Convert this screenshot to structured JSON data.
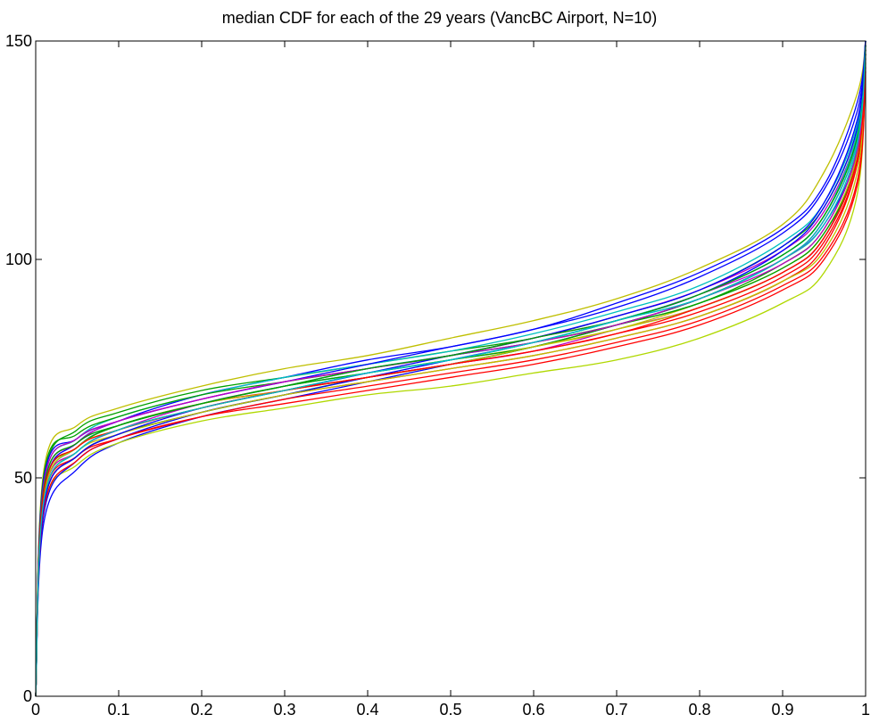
{
  "chart_data": {
    "type": "line",
    "title": "median CDF for each of the 29 years (VancBC Airport, N=10)",
    "xlabel": "",
    "ylabel": "",
    "xlim": [
      0,
      1
    ],
    "ylim": [
      0,
      150
    ],
    "x_ticks": [
      0,
      0.1,
      0.2,
      0.3,
      0.4,
      0.5,
      0.6,
      0.7,
      0.8,
      0.9,
      1
    ],
    "x_tick_labels": [
      "0",
      "0.1",
      "0.2",
      "0.3",
      "0.4",
      "0.5",
      "0.6",
      "0.7",
      "0.8",
      "0.9",
      "1"
    ],
    "y_ticks": [
      0,
      50,
      100,
      150
    ],
    "y_tick_labels": [
      "0",
      "50",
      "100",
      "150"
    ],
    "grid": false,
    "legend": "none",
    "x": [
      0,
      0.01,
      0.05,
      0.1,
      0.2,
      0.3,
      0.4,
      0.5,
      0.6,
      0.7,
      0.8,
      0.9,
      0.95,
      0.99,
      1
    ],
    "series": [
      {
        "color": "#0000ff",
        "values": [
          0,
          40,
          52,
          58,
          64,
          68,
          72,
          76,
          80,
          85,
          91,
          100,
          108,
          125,
          150
        ]
      },
      {
        "color": "#00a000",
        "values": [
          0,
          50,
          61,
          65,
          70,
          73,
          76,
          79,
          82,
          87,
          93,
          103,
          112,
          130,
          150
        ]
      },
      {
        "color": "#ff0000",
        "values": [
          0,
          45,
          55,
          60,
          65,
          69,
          72,
          75,
          78,
          82,
          87,
          95,
          103,
          122,
          148
        ]
      },
      {
        "color": "#00bfbf",
        "values": [
          0,
          48,
          58,
          62,
          67,
          71,
          74,
          77,
          81,
          86,
          92,
          101,
          110,
          128,
          149
        ]
      },
      {
        "color": "#bf00bf",
        "values": [
          0,
          46,
          56,
          61,
          66,
          70,
          73,
          76,
          79,
          84,
          89,
          97,
          105,
          124,
          147
        ]
      },
      {
        "color": "#bfbf00",
        "values": [
          0,
          52,
          62,
          66,
          71,
          75,
          78,
          82,
          86,
          91,
          98,
          108,
          120,
          138,
          150
        ]
      },
      {
        "color": "#b0d800",
        "values": [
          0,
          43,
          53,
          58,
          63,
          66,
          69,
          71,
          74,
          77,
          82,
          90,
          97,
          115,
          145
        ]
      },
      {
        "color": "#0000ff",
        "values": [
          0,
          47,
          58,
          63,
          69,
          73,
          77,
          80,
          84,
          89,
          96,
          106,
          116,
          134,
          150
        ]
      },
      {
        "color": "#00a000",
        "values": [
          0,
          44,
          55,
          60,
          65,
          69,
          73,
          76,
          80,
          85,
          91,
          100,
          109,
          127,
          149
        ]
      },
      {
        "color": "#ff0000",
        "values": [
          0,
          46,
          57,
          62,
          67,
          70,
          73,
          76,
          79,
          83,
          88,
          96,
          104,
          122,
          146
        ]
      },
      {
        "color": "#00bfbf",
        "values": [
          0,
          49,
          59,
          64,
          69,
          73,
          76,
          79,
          83,
          88,
          94,
          104,
          113,
          131,
          150
        ]
      },
      {
        "color": "#bf00bf",
        "values": [
          0,
          45,
          56,
          61,
          67,
          71,
          75,
          78,
          82,
          87,
          93,
          102,
          111,
          129,
          150
        ]
      },
      {
        "color": "#bfbf00",
        "values": [
          0,
          47,
          57,
          62,
          67,
          70,
          74,
          77,
          80,
          84,
          90,
          98,
          106,
          124,
          148
        ]
      },
      {
        "color": "#0000ff",
        "values": [
          0,
          42,
          54,
          59,
          65,
          69,
          73,
          77,
          81,
          86,
          92,
          102,
          112,
          130,
          150
        ]
      },
      {
        "color": "#00a000",
        "values": [
          0,
          51,
          60,
          64,
          69,
          72,
          75,
          78,
          81,
          85,
          90,
          98,
          106,
          123,
          147
        ]
      },
      {
        "color": "#ff0000",
        "values": [
          0,
          44,
          55,
          59,
          64,
          68,
          71,
          74,
          77,
          81,
          86,
          94,
          101,
          118,
          144
        ]
      },
      {
        "color": "#00bfbf",
        "values": [
          0,
          46,
          57,
          62,
          67,
          71,
          75,
          78,
          81,
          86,
          91,
          100,
          108,
          126,
          149
        ]
      },
      {
        "color": "#bf00bf",
        "values": [
          0,
          48,
          58,
          63,
          68,
          72,
          75,
          78,
          82,
          86,
          92,
          100,
          109,
          127,
          149
        ]
      },
      {
        "color": "#bfbf00",
        "values": [
          0,
          45,
          56,
          60,
          65,
          69,
          72,
          75,
          78,
          82,
          87,
          95,
          102,
          120,
          146
        ]
      },
      {
        "color": "#0000ff",
        "values": [
          0,
          50,
          59,
          63,
          68,
          72,
          76,
          80,
          84,
          90,
          97,
          107,
          117,
          136,
          150
        ]
      },
      {
        "color": "#00a000",
        "values": [
          0,
          47,
          57,
          62,
          67,
          71,
          74,
          77,
          80,
          85,
          90,
          99,
          107,
          125,
          148
        ]
      },
      {
        "color": "#ff0000",
        "values": [
          0,
          43,
          54,
          59,
          64,
          67,
          70,
          73,
          76,
          80,
          85,
          93,
          100,
          117,
          143
        ]
      },
      {
        "color": "#00bfbf",
        "values": [
          0,
          45,
          56,
          61,
          66,
          70,
          74,
          77,
          81,
          86,
          92,
          101,
          110,
          129,
          150
        ]
      },
      {
        "color": "#bf00bf",
        "values": [
          0,
          49,
          59,
          63,
          68,
          72,
          75,
          78,
          81,
          85,
          91,
          99,
          107,
          125,
          148
        ]
      },
      {
        "color": "#bfbf00",
        "values": [
          0,
          46,
          57,
          61,
          66,
          70,
          73,
          76,
          80,
          84,
          89,
          97,
          105,
          123,
          147
        ]
      },
      {
        "color": "#0000ff",
        "values": [
          0,
          44,
          55,
          60,
          66,
          70,
          74,
          78,
          82,
          87,
          93,
          103,
          113,
          132,
          150
        ]
      },
      {
        "color": "#00a000",
        "values": [
          0,
          48,
          58,
          62,
          67,
          71,
          75,
          78,
          82,
          86,
          92,
          101,
          110,
          128,
          149
        ]
      },
      {
        "color": "#ff0000",
        "values": [
          0,
          47,
          57,
          61,
          66,
          70,
          73,
          76,
          79,
          83,
          89,
          97,
          105,
          123,
          147
        ]
      },
      {
        "color": "#00bfbf",
        "values": [
          0,
          45,
          56,
          61,
          66,
          70,
          74,
          77,
          81,
          86,
          91,
          100,
          109,
          127,
          149
        ]
      }
    ]
  }
}
